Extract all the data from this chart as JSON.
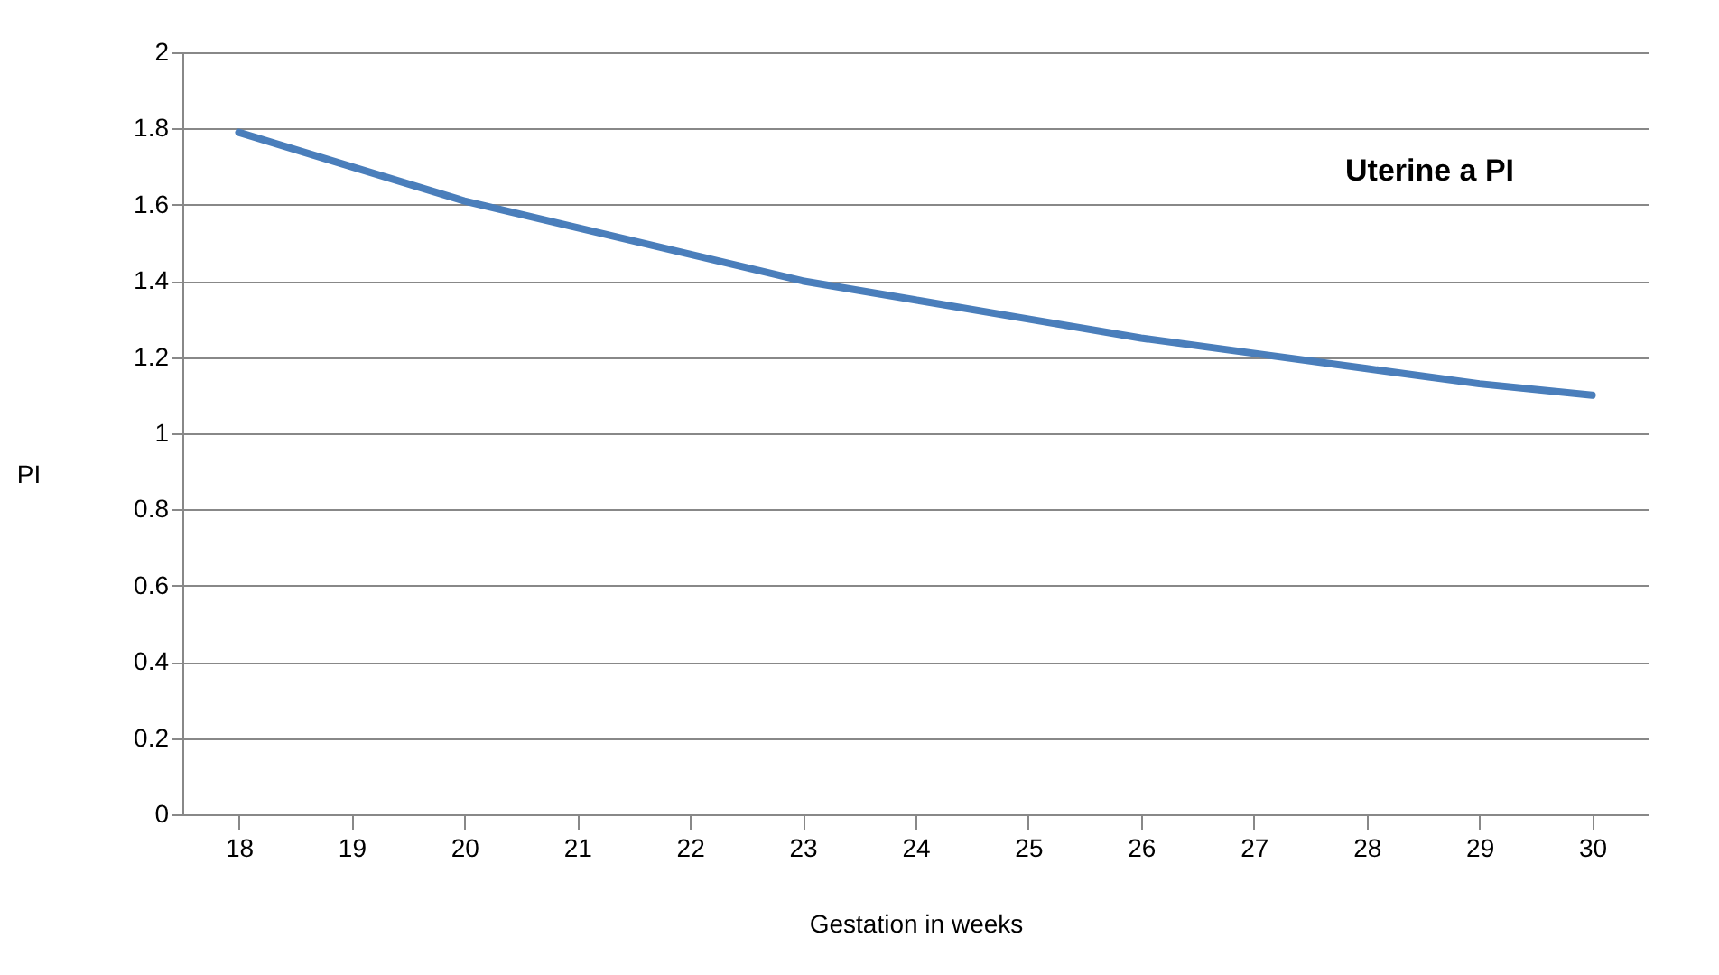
{
  "chart_data": {
    "type": "line",
    "xlabel": "Gestation in weeks",
    "ylabel": "PI",
    "annotations": [
      "Uterine a PI"
    ],
    "categories": [
      "18",
      "19",
      "20",
      "21",
      "22",
      "23",
      "24",
      "25",
      "26",
      "27",
      "28",
      "29",
      "30"
    ],
    "series": [
      {
        "color": "#4a7ebb",
        "values": [
          1.79,
          1.7,
          1.61,
          1.54,
          1.47,
          1.4,
          1.35,
          1.3,
          1.25,
          1.21,
          1.17,
          1.13,
          1.1
        ]
      }
    ],
    "ylim": [
      0,
      2
    ],
    "yticks": [
      0,
      0.2,
      0.4,
      0.6,
      0.8,
      1,
      1.2,
      1.4,
      1.6,
      1.8,
      2
    ],
    "grid": "y",
    "legend": false,
    "marker": "none",
    "line_style": "solid"
  }
}
